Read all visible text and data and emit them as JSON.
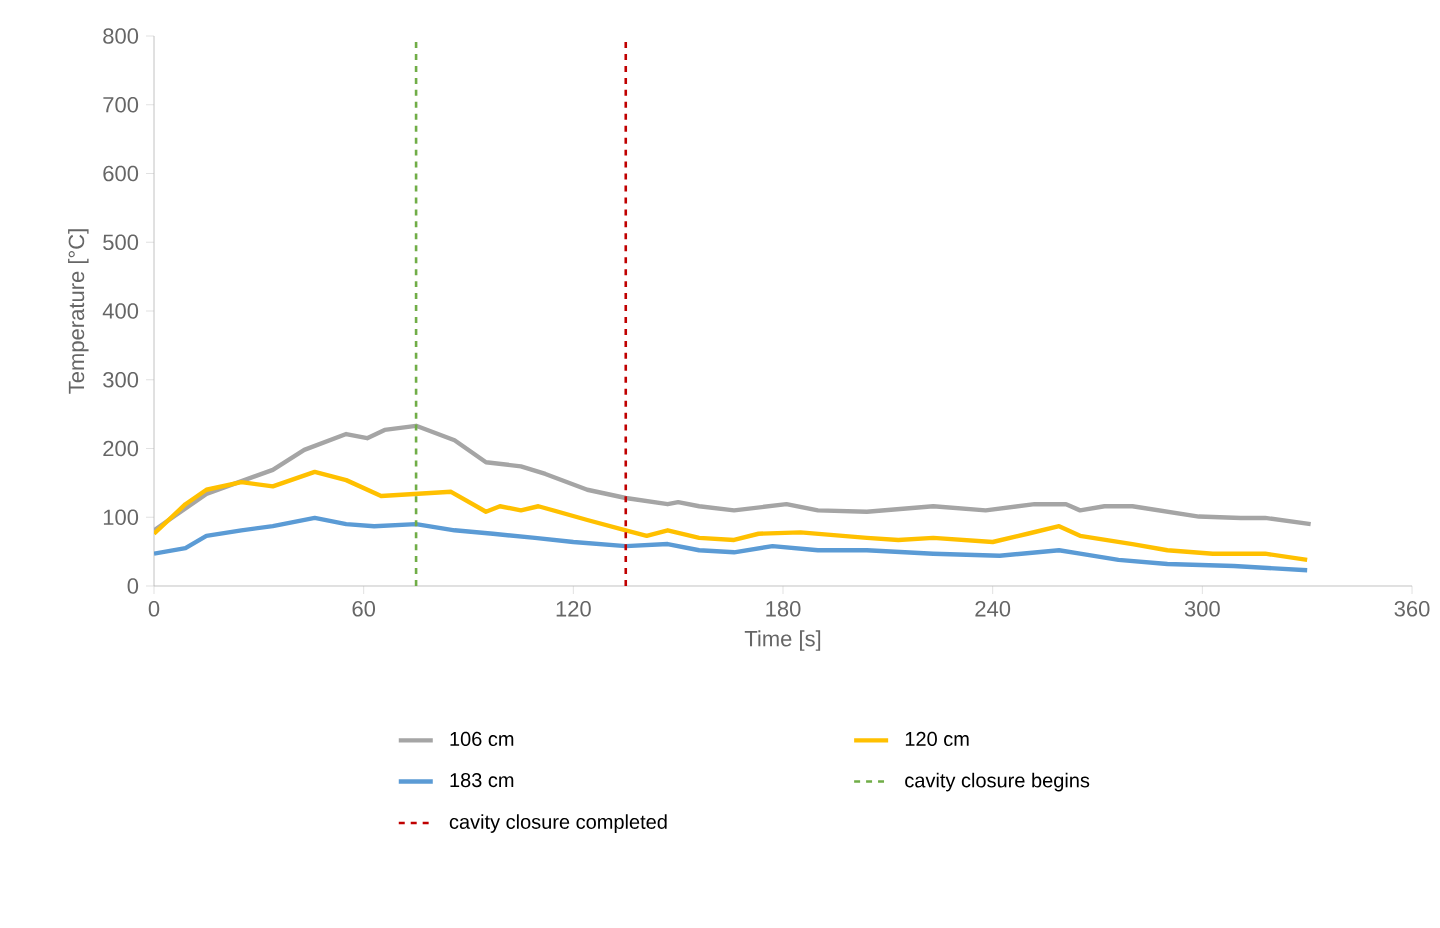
{
  "chart_data": {
    "type": "line",
    "xlabel": "Time [s]",
    "ylabel": "Temperature [°C]",
    "xlim": [
      0,
      360
    ],
    "xticks": [
      0,
      60,
      120,
      180,
      240,
      300,
      360
    ],
    "ylim": [
      0,
      800
    ],
    "yticks": [
      0,
      100,
      200,
      300,
      400,
      500,
      600,
      700,
      800
    ],
    "grid": false,
    "legend": "bottom",
    "marker": "none",
    "line_style": "solid",
    "series": [
      {
        "name": "106 cm",
        "color": "#a5a5a5",
        "x": [
          0,
          15,
          34,
          43,
          55,
          61,
          66,
          75,
          86,
          95,
          105,
          112,
          124,
          135,
          147,
          150,
          156,
          166,
          181,
          190,
          204,
          223,
          238,
          252,
          261,
          265,
          272,
          280,
          299,
          311,
          318,
          331
        ],
        "values": [
          81,
          134,
          169,
          198,
          221,
          215,
          227,
          233,
          212,
          180,
          174,
          163,
          140,
          128,
          119,
          122,
          116,
          110,
          119,
          110,
          108,
          116,
          110,
          119,
          119,
          110,
          116,
          116,
          101,
          99,
          99,
          90
        ]
      },
      {
        "name": "120 cm",
        "color": "#ffc000",
        "x": [
          0,
          9,
          15,
          25,
          34,
          46,
          55,
          65,
          75,
          85,
          95,
          99,
          105,
          110,
          124,
          135,
          141,
          147,
          156,
          166,
          173,
          185,
          204,
          213,
          223,
          240,
          250,
          259,
          265,
          280,
          290,
          303,
          318,
          330
        ],
        "values": [
          76,
          119,
          140,
          151,
          145,
          166,
          154,
          131,
          134,
          137,
          108,
          116,
          110,
          116,
          96,
          81,
          73,
          81,
          70,
          67,
          76,
          78,
          70,
          67,
          70,
          64,
          76,
          87,
          73,
          61,
          52,
          47,
          47,
          38
        ]
      },
      {
        "name": "183 cm",
        "color": "#5b9bd5",
        "x": [
          0,
          9,
          15,
          25,
          34,
          46,
          55,
          63,
          75,
          86,
          97,
          109,
          120,
          135,
          147,
          156,
          166,
          177,
          190,
          204,
          223,
          242,
          259,
          265,
          276,
          290,
          309,
          330
        ],
        "values": [
          47,
          55,
          73,
          81,
          87,
          99,
          90,
          87,
          90,
          81,
          76,
          70,
          64,
          58,
          61,
          52,
          49,
          58,
          52,
          52,
          47,
          44,
          52,
          47,
          38,
          32,
          29,
          23
        ]
      }
    ],
    "ref_lines": [
      {
        "axis": "x",
        "value": 75,
        "label": "cavity closure begins",
        "color": "#70ad47",
        "line_style": "dashed"
      },
      {
        "axis": "x",
        "value": 135,
        "label": "cavity closure completed",
        "color": "#c00000",
        "line_style": "dashed"
      }
    ]
  }
}
